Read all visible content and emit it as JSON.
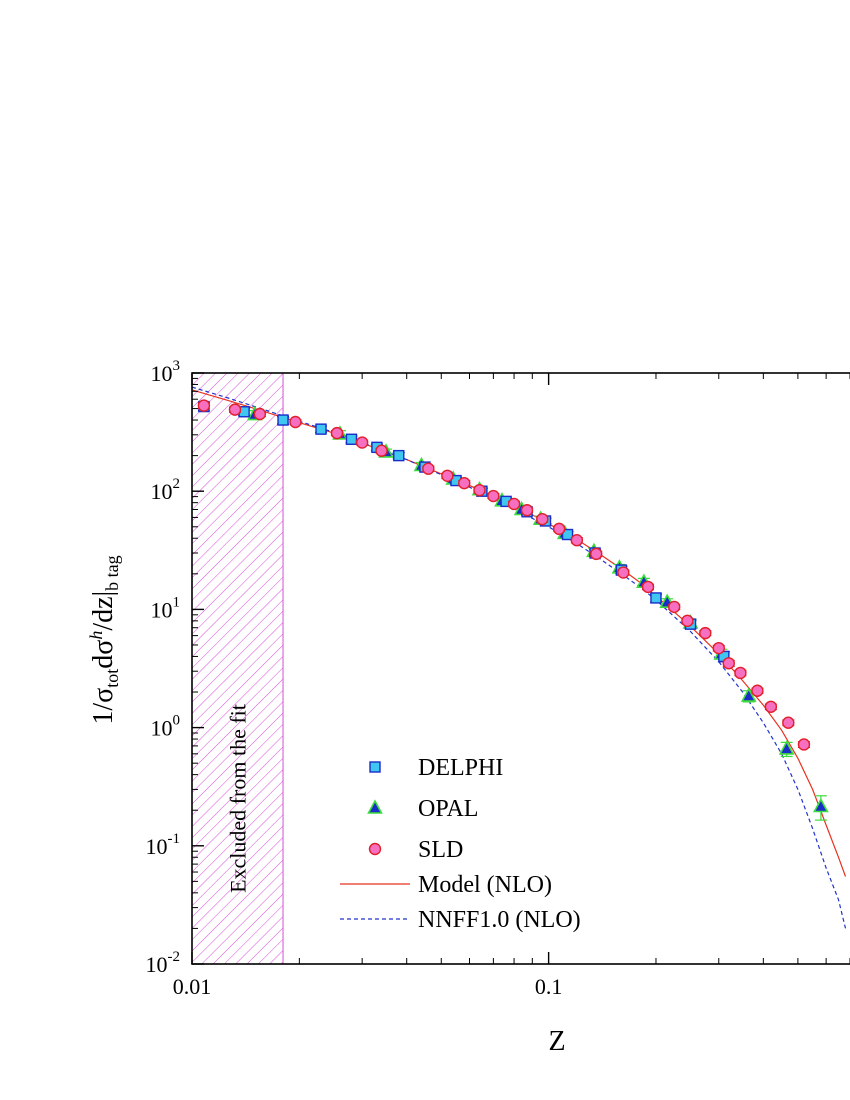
{
  "chart_data": {
    "type": "scatter",
    "xlabel": "Z",
    "ylabel_parts": {
      "prefix": "1/σ",
      "tot_sub": "tot",
      "mid": "dσ",
      "h_sup": "h",
      "suffix": "/dz|",
      "btag_sub": "b tag"
    },
    "x_scale": "log",
    "y_scale": "log",
    "xlim": [
      0.01,
      0.7
    ],
    "ylim": [
      0.01,
      1000
    ],
    "x_tick_labels": [
      "0.01",
      "0.1"
    ],
    "x_tick_values": [
      0.01,
      0.1
    ],
    "y_tick_labels": [
      {
        "base": "10",
        "exp": "-2",
        "value": 0.01
      },
      {
        "base": "10",
        "exp": "-1",
        "value": 0.1
      },
      {
        "base": "10",
        "exp": "0",
        "value": 1
      },
      {
        "base": "10",
        "exp": "1",
        "value": 10
      },
      {
        "base": "10",
        "exp": "2",
        "value": 100
      },
      {
        "base": "10",
        "exp": "3",
        "value": 1000
      }
    ],
    "excluded_region": {
      "x_range": [
        0.01,
        0.018
      ],
      "label": "Excluded from the fit",
      "color": "#d94fd9"
    },
    "legend_position": "bottom-center",
    "series": [
      {
        "name": "DELPHI",
        "marker": "square",
        "fill": "#3fc7f2",
        "stroke": "#1a2cc9",
        "points": [
          {
            "x": 0.0108,
            "y": 520,
            "err": 40
          },
          {
            "x": 0.014,
            "y": 470,
            "err": 35
          },
          {
            "x": 0.018,
            "y": 400,
            "err": 30
          },
          {
            "x": 0.023,
            "y": 335,
            "err": 20
          },
          {
            "x": 0.028,
            "y": 275,
            "err": 18
          },
          {
            "x": 0.033,
            "y": 235,
            "err": 15
          },
          {
            "x": 0.038,
            "y": 200,
            "err": 12
          },
          {
            "x": 0.045,
            "y": 160,
            "err": 10
          },
          {
            "x": 0.055,
            "y": 123,
            "err": 8
          },
          {
            "x": 0.065,
            "y": 100,
            "err": 6
          },
          {
            "x": 0.076,
            "y": 82,
            "err": 5
          },
          {
            "x": 0.087,
            "y": 67,
            "err": 4
          },
          {
            "x": 0.098,
            "y": 56,
            "err": 3
          },
          {
            "x": 0.113,
            "y": 43,
            "err": 2.5
          },
          {
            "x": 0.135,
            "y": 30,
            "err": 2
          },
          {
            "x": 0.16,
            "y": 21.5,
            "err": 1.5
          },
          {
            "x": 0.2,
            "y": 12.5,
            "err": 1
          },
          {
            "x": 0.25,
            "y": 7.5,
            "err": 0.6
          },
          {
            "x": 0.31,
            "y": 4.0,
            "err": 0.4
          }
        ]
      },
      {
        "name": "OPAL",
        "marker": "triangle",
        "fill": "#1a2cc9",
        "stroke": "#3cdc3c",
        "points": [
          {
            "x": 0.015,
            "y": 445,
            "err": 35
          },
          {
            "x": 0.026,
            "y": 305,
            "err": 20
          },
          {
            "x": 0.035,
            "y": 215,
            "err": 12
          },
          {
            "x": 0.044,
            "y": 165,
            "err": 10
          },
          {
            "x": 0.054,
            "y": 127,
            "err": 7
          },
          {
            "x": 0.064,
            "y": 103,
            "err": 6
          },
          {
            "x": 0.074,
            "y": 83,
            "err": 5
          },
          {
            "x": 0.084,
            "y": 70,
            "err": 4
          },
          {
            "x": 0.095,
            "y": 58,
            "err": 3.5
          },
          {
            "x": 0.111,
            "y": 44,
            "err": 3
          },
          {
            "x": 0.134,
            "y": 31,
            "err": 2
          },
          {
            "x": 0.158,
            "y": 22.5,
            "err": 1.5
          },
          {
            "x": 0.185,
            "y": 17,
            "err": 1.3
          },
          {
            "x": 0.215,
            "y": 11.5,
            "err": 0.8
          },
          {
            "x": 0.25,
            "y": 7.7,
            "err": 0.6
          },
          {
            "x": 0.305,
            "y": 4.2,
            "err": 0.4
          },
          {
            "x": 0.364,
            "y": 1.85,
            "err": 0.2
          },
          {
            "x": 0.465,
            "y": 0.66,
            "err": 0.09
          },
          {
            "x": 0.58,
            "y": 0.215,
            "err": 0.05
          }
        ]
      },
      {
        "name": "SLD",
        "marker": "circle",
        "fill": "#f76fc0",
        "stroke": "#e0202a",
        "points": [
          {
            "x": 0.0108,
            "y": 530,
            "err": 30
          },
          {
            "x": 0.0132,
            "y": 490,
            "err": 25
          },
          {
            "x": 0.0155,
            "y": 450,
            "err": 22
          },
          {
            "x": 0.0195,
            "y": 385,
            "err": 18
          },
          {
            "x": 0.0255,
            "y": 310,
            "err": 15
          },
          {
            "x": 0.03,
            "y": 258,
            "err": 12
          },
          {
            "x": 0.034,
            "y": 220,
            "err": 10
          },
          {
            "x": 0.046,
            "y": 155,
            "err": 8
          },
          {
            "x": 0.052,
            "y": 135,
            "err": 7
          },
          {
            "x": 0.058,
            "y": 117,
            "err": 6
          },
          {
            "x": 0.064,
            "y": 102,
            "err": 5
          },
          {
            "x": 0.07,
            "y": 91,
            "err": 4
          },
          {
            "x": 0.08,
            "y": 78,
            "err": 4
          },
          {
            "x": 0.087,
            "y": 69,
            "err": 3
          },
          {
            "x": 0.096,
            "y": 58,
            "err": 3
          },
          {
            "x": 0.107,
            "y": 48,
            "err": 2
          },
          {
            "x": 0.12,
            "y": 38.5,
            "err": 2
          },
          {
            "x": 0.136,
            "y": 29.5,
            "err": 1.5
          },
          {
            "x": 0.162,
            "y": 20.5,
            "err": 1
          },
          {
            "x": 0.19,
            "y": 15.5,
            "err": 0.8
          },
          {
            "x": 0.225,
            "y": 10.5,
            "err": 0.5
          },
          {
            "x": 0.245,
            "y": 8.0,
            "err": 0.4
          },
          {
            "x": 0.275,
            "y": 6.3,
            "err": 0.3
          },
          {
            "x": 0.3,
            "y": 4.7,
            "err": 0.25
          },
          {
            "x": 0.32,
            "y": 3.5,
            "err": 0.2
          },
          {
            "x": 0.345,
            "y": 2.9,
            "err": 0.15
          },
          {
            "x": 0.385,
            "y": 2.05,
            "err": 0.1
          },
          {
            "x": 0.42,
            "y": 1.5,
            "err": 0.08
          },
          {
            "x": 0.47,
            "y": 1.1,
            "err": 0.06
          },
          {
            "x": 0.52,
            "y": 0.72,
            "err": 0.04
          }
        ]
      }
    ],
    "curves": [
      {
        "name": "Model (NLO)",
        "style": "solid",
        "color": "#e8321e",
        "points": [
          [
            0.01,
            720
          ],
          [
            0.0125,
            590
          ],
          [
            0.015,
            500
          ],
          [
            0.02,
            380
          ],
          [
            0.025,
            310
          ],
          [
            0.03,
            255
          ],
          [
            0.04,
            185
          ],
          [
            0.05,
            140
          ],
          [
            0.06,
            112
          ],
          [
            0.07,
            90
          ],
          [
            0.08,
            75
          ],
          [
            0.09,
            63
          ],
          [
            0.1,
            53
          ],
          [
            0.12,
            39
          ],
          [
            0.14,
            29
          ],
          [
            0.16,
            22
          ],
          [
            0.18,
            17
          ],
          [
            0.2,
            13
          ],
          [
            0.25,
            7.2
          ],
          [
            0.3,
            4.2
          ],
          [
            0.35,
            2.5
          ],
          [
            0.4,
            1.55
          ],
          [
            0.45,
            0.95
          ],
          [
            0.5,
            0.55
          ],
          [
            0.55,
            0.3
          ],
          [
            0.6,
            0.15
          ],
          [
            0.65,
            0.08
          ],
          [
            0.68,
            0.055
          ]
        ]
      },
      {
        "name": "NNFF1.0 (NLO)",
        "style": "dashed",
        "color": "#2233cc",
        "points": [
          [
            0.01,
            760
          ],
          [
            0.0125,
            620
          ],
          [
            0.015,
            520
          ],
          [
            0.02,
            390
          ],
          [
            0.025,
            315
          ],
          [
            0.03,
            258
          ],
          [
            0.04,
            185
          ],
          [
            0.05,
            138
          ],
          [
            0.06,
            108
          ],
          [
            0.07,
            87
          ],
          [
            0.08,
            71
          ],
          [
            0.09,
            59
          ],
          [
            0.1,
            50
          ],
          [
            0.12,
            36
          ],
          [
            0.14,
            26.5
          ],
          [
            0.16,
            20
          ],
          [
            0.18,
            15.5
          ],
          [
            0.2,
            12
          ],
          [
            0.25,
            6.5
          ],
          [
            0.3,
            3.6
          ],
          [
            0.35,
            2.0
          ],
          [
            0.4,
            1.1
          ],
          [
            0.45,
            0.6
          ],
          [
            0.5,
            0.3
          ],
          [
            0.55,
            0.14
          ],
          [
            0.6,
            0.065
          ],
          [
            0.65,
            0.035
          ],
          [
            0.68,
            0.02
          ]
        ]
      }
    ]
  }
}
